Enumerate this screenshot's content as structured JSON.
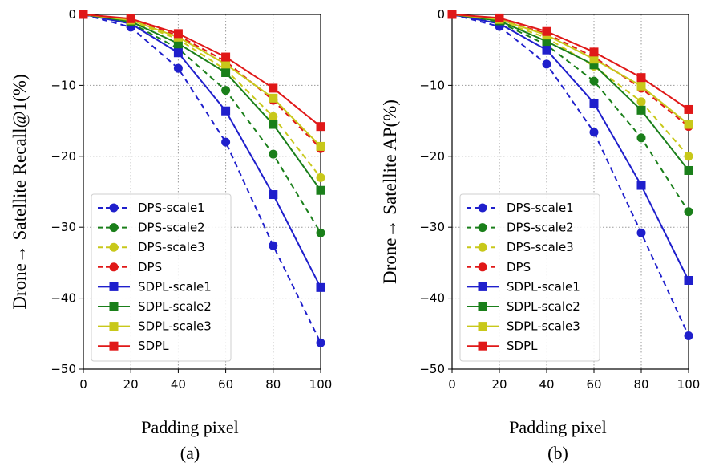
{
  "chart_data": [
    {
      "type": "line",
      "title": "",
      "caption": "(a)",
      "xlabel": "Padding pixel",
      "ylabel": "Drone→ Satellite Recall@1(%)",
      "x": [
        0,
        20,
        40,
        60,
        80,
        100
      ],
      "xlim": [
        0,
        100
      ],
      "ylim": [
        -50,
        0
      ],
      "xticks": [
        "0",
        "20",
        "40",
        "60",
        "80",
        "100"
      ],
      "yticks": [
        "0",
        "−10",
        "−20",
        "−30",
        "−40",
        "−50"
      ],
      "grid": true,
      "legend_position": "lower-left",
      "series": [
        {
          "name": "DPS-scale1",
          "color": "#1f1fcc",
          "marker": "circle",
          "dashed": true,
          "values": [
            0,
            -1.8,
            -7.6,
            -18.0,
            -32.6,
            -46.3
          ]
        },
        {
          "name": "DPS-scale2",
          "color": "#1a7f1a",
          "marker": "circle",
          "dashed": true,
          "values": [
            0,
            -1.2,
            -4.8,
            -10.7,
            -19.7,
            -30.8
          ]
        },
        {
          "name": "DPS-scale3",
          "color": "#c8c81a",
          "marker": "circle",
          "dashed": true,
          "values": [
            0,
            -0.9,
            -3.5,
            -7.8,
            -14.4,
            -23.0
          ]
        },
        {
          "name": "DPS",
          "color": "#e01818",
          "marker": "circle",
          "dashed": true,
          "values": [
            0,
            -0.7,
            -3.0,
            -6.6,
            -12.1,
            -18.9
          ]
        },
        {
          "name": "SDPL-scale1",
          "color": "#1f1fcc",
          "marker": "square",
          "dashed": false,
          "values": [
            0,
            -1.3,
            -5.4,
            -13.6,
            -25.4,
            -38.5
          ]
        },
        {
          "name": "SDPL-scale2",
          "color": "#1a7f1a",
          "marker": "square",
          "dashed": false,
          "values": [
            0,
            -1.0,
            -4.1,
            -8.2,
            -15.5,
            -24.8
          ]
        },
        {
          "name": "SDPL-scale3",
          "color": "#c8c81a",
          "marker": "square",
          "dashed": false,
          "values": [
            0,
            -0.8,
            -3.2,
            -7.0,
            -11.8,
            -18.6
          ]
        },
        {
          "name": "SDPL",
          "color": "#e01818",
          "marker": "square",
          "dashed": false,
          "values": [
            0,
            -0.6,
            -2.7,
            -6.0,
            -10.4,
            -15.8
          ]
        }
      ]
    },
    {
      "type": "line",
      "title": "",
      "caption": "(b)",
      "xlabel": "Padding pixel",
      "ylabel": "Drone→ Satellite AP(%)",
      "x": [
        0,
        20,
        40,
        60,
        80,
        100
      ],
      "xlim": [
        0,
        100
      ],
      "ylim": [
        -50,
        0
      ],
      "xticks": [
        "0",
        "20",
        "40",
        "60",
        "80",
        "100"
      ],
      "yticks": [
        "0",
        "−10",
        "−20",
        "−30",
        "−40",
        "−50"
      ],
      "grid": true,
      "legend_position": "lower-left",
      "series": [
        {
          "name": "DPS-scale1",
          "color": "#1f1fcc",
          "marker": "circle",
          "dashed": true,
          "values": [
            0,
            -1.7,
            -7.0,
            -16.6,
            -30.8,
            -45.3
          ]
        },
        {
          "name": "DPS-scale2",
          "color": "#1a7f1a",
          "marker": "circle",
          "dashed": true,
          "values": [
            0,
            -1.1,
            -4.3,
            -9.4,
            -17.4,
            -27.8
          ]
        },
        {
          "name": "DPS-scale3",
          "color": "#c8c81a",
          "marker": "circle",
          "dashed": true,
          "values": [
            0,
            -0.9,
            -3.3,
            -7.3,
            -12.3,
            -20.0
          ]
        },
        {
          "name": "DPS",
          "color": "#e01818",
          "marker": "circle",
          "dashed": true,
          "values": [
            0,
            -0.7,
            -2.7,
            -6.0,
            -10.4,
            -15.8
          ]
        },
        {
          "name": "SDPL-scale1",
          "color": "#1f1fcc",
          "marker": "square",
          "dashed": false,
          "values": [
            0,
            -1.3,
            -5.0,
            -12.5,
            -24.1,
            -37.5
          ]
        },
        {
          "name": "SDPL-scale2",
          "color": "#1a7f1a",
          "marker": "square",
          "dashed": false,
          "values": [
            0,
            -0.9,
            -3.8,
            -7.1,
            -13.5,
            -22.0
          ]
        },
        {
          "name": "SDPL-scale3",
          "color": "#c8c81a",
          "marker": "square",
          "dashed": false,
          "values": [
            0,
            -0.7,
            -2.9,
            -6.3,
            -10.1,
            -15.5
          ]
        },
        {
          "name": "SDPL",
          "color": "#e01818",
          "marker": "square",
          "dashed": false,
          "values": [
            0,
            -0.5,
            -2.4,
            -5.3,
            -8.9,
            -13.4
          ]
        }
      ]
    }
  ]
}
